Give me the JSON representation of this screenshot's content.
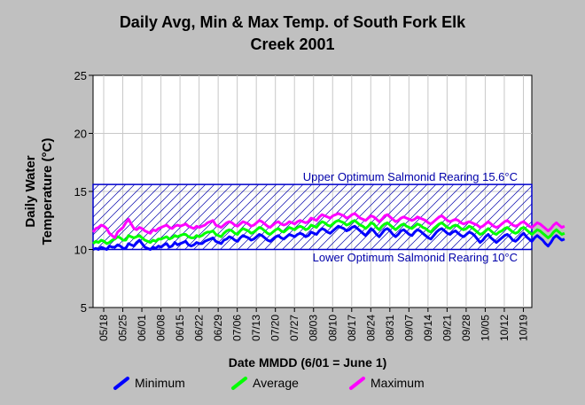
{
  "chart_data": {
    "type": "line",
    "title_lines": [
      "Daily Avg, Min & Max Temp. of South Fork Elk",
      "Creek 2001"
    ],
    "xlabel": "Date MMDD (6/01 = June 1)",
    "ylabel_lines": [
      "Daily Water",
      "Temperature (°C)"
    ],
    "ylim": [
      5,
      25
    ],
    "y_ticks": [
      "5",
      "10",
      "15",
      "20",
      "25"
    ],
    "x_ticks": [
      "05/18",
      "05/25",
      "06/01",
      "06/08",
      "06/15",
      "06/22",
      "06/29",
      "07/06",
      "07/13",
      "07/20",
      "07/27",
      "08/03",
      "08/10",
      "08/17",
      "08/24",
      "08/31",
      "09/07",
      "09/14",
      "09/21",
      "09/28",
      "10/05",
      "10/12",
      "10/19"
    ],
    "grid": true,
    "legend_position": "bottom",
    "band": {
      "upper": 15.6,
      "lower": 10,
      "upper_label": "Upper Optimum Salmonid Rearing 15.6°C",
      "lower_label": "Lower Optimum Salmonid Rearing 10°C"
    },
    "series": [
      {
        "name": "Minimum",
        "color": "#0000ff",
        "values": [
          10.0,
          10.1,
          10.0,
          10.2,
          10.1,
          10.0,
          10.3,
          10.2,
          10.2,
          10.4,
          10.3,
          10.1,
          10.1,
          10.5,
          10.4,
          10.3,
          10.6,
          10.8,
          10.5,
          10.2,
          10.1,
          10.0,
          10.2,
          10.1,
          10.3,
          10.2,
          10.4,
          10.5,
          10.2,
          10.3,
          10.6,
          10.4,
          10.5,
          10.6,
          10.7,
          10.4,
          10.3,
          10.4,
          10.6,
          10.5,
          10.5,
          10.7,
          10.8,
          10.9,
          11.0,
          10.7,
          10.6,
          10.5,
          10.8,
          10.9,
          11.1,
          11.0,
          10.8,
          10.7,
          11.0,
          11.2,
          11.1,
          11.0,
          10.8,
          10.9,
          11.1,
          11.3,
          11.2,
          11.0,
          10.8,
          10.7,
          10.9,
          11.1,
          11.2,
          11.0,
          10.9,
          11.1,
          11.3,
          11.2,
          11.1,
          11.3,
          11.4,
          11.3,
          11.1,
          11.2,
          11.5,
          11.4,
          11.3,
          11.6,
          11.8,
          11.7,
          11.5,
          11.4,
          11.6,
          11.8,
          12.0,
          11.9,
          11.8,
          11.6,
          11.7,
          11.9,
          12.0,
          11.8,
          11.6,
          11.4,
          11.2,
          11.5,
          11.8,
          11.6,
          11.3,
          11.1,
          11.4,
          11.7,
          11.8,
          11.6,
          11.3,
          11.1,
          11.3,
          11.6,
          11.7,
          11.5,
          11.3,
          11.2,
          11.5,
          11.7,
          11.6,
          11.4,
          11.2,
          11.0,
          10.9,
          11.2,
          11.5,
          11.7,
          11.8,
          11.6,
          11.4,
          11.3,
          11.5,
          11.6,
          11.4,
          11.2,
          11.1,
          11.3,
          11.5,
          11.4,
          11.2,
          10.9,
          10.6,
          10.8,
          11.1,
          11.3,
          11.0,
          10.8,
          10.6,
          10.8,
          11.0,
          11.2,
          11.3,
          11.1,
          10.8,
          10.7,
          10.9,
          11.2,
          11.4,
          11.1,
          10.9,
          10.7,
          11.0,
          11.2,
          11.0,
          10.8,
          10.5,
          10.3,
          10.6,
          11.0,
          11.2,
          11.0,
          10.8,
          10.9
        ]
      },
      {
        "name": "Average",
        "color": "#00ff00",
        "values": [
          10.5,
          10.7,
          10.6,
          10.8,
          10.7,
          10.5,
          10.6,
          10.8,
          10.9,
          11.1,
          11.0,
          10.8,
          10.8,
          11.2,
          11.1,
          11.0,
          11.1,
          11.2,
          11.0,
          10.8,
          10.7,
          10.6,
          10.8,
          10.7,
          10.9,
          10.9,
          11.0,
          11.1,
          10.9,
          11.0,
          11.2,
          11.1,
          11.2,
          11.3,
          11.3,
          11.1,
          11.0,
          11.0,
          11.2,
          11.1,
          11.2,
          11.4,
          11.5,
          11.5,
          11.6,
          11.3,
          11.2,
          11.1,
          11.4,
          11.6,
          11.7,
          11.6,
          11.4,
          11.3,
          11.6,
          11.8,
          11.7,
          11.6,
          11.4,
          11.5,
          11.7,
          11.9,
          11.8,
          11.6,
          11.4,
          11.3,
          11.5,
          11.7,
          11.8,
          11.6,
          11.5,
          11.7,
          11.9,
          11.8,
          11.7,
          11.9,
          12.0,
          11.9,
          11.7,
          11.8,
          12.1,
          12.0,
          11.9,
          12.2,
          12.4,
          12.3,
          12.1,
          12.0,
          12.2,
          12.4,
          12.5,
          12.4,
          12.3,
          12.1,
          12.2,
          12.4,
          12.5,
          12.3,
          12.1,
          12.0,
          11.8,
          12.0,
          12.3,
          12.2,
          11.9,
          11.7,
          12.0,
          12.2,
          12.3,
          12.1,
          11.9,
          11.7,
          11.9,
          12.1,
          12.2,
          12.0,
          11.9,
          11.8,
          12.0,
          12.2,
          12.1,
          11.9,
          11.8,
          11.6,
          11.5,
          11.8,
          12.0,
          12.2,
          12.3,
          12.1,
          11.9,
          11.8,
          12.0,
          12.1,
          12.0,
          11.8,
          11.7,
          11.8,
          12.0,
          11.9,
          11.7,
          11.5,
          11.3,
          11.4,
          11.6,
          11.8,
          11.6,
          11.4,
          11.3,
          11.5,
          11.6,
          11.8,
          11.9,
          11.7,
          11.5,
          11.4,
          11.5,
          11.8,
          11.9,
          11.7,
          11.5,
          11.3,
          11.5,
          11.7,
          11.6,
          11.4,
          11.2,
          11.0,
          11.2,
          11.5,
          11.7,
          11.5,
          11.3,
          11.4
        ]
      },
      {
        "name": "Maximum",
        "color": "#ff00ff",
        "values": [
          11.5,
          11.8,
          11.9,
          12.1,
          12.0,
          11.8,
          11.4,
          11.2,
          11.0,
          11.5,
          11.7,
          11.9,
          12.3,
          12.6,
          12.2,
          11.8,
          11.7,
          11.9,
          11.8,
          11.6,
          11.5,
          11.4,
          11.7,
          11.6,
          11.8,
          11.9,
          12.0,
          12.1,
          11.9,
          11.8,
          12.0,
          12.1,
          12.0,
          12.1,
          12.2,
          12.0,
          11.9,
          11.8,
          12.0,
          11.9,
          12.0,
          12.1,
          12.3,
          12.4,
          12.5,
          12.1,
          12.0,
          11.9,
          12.1,
          12.3,
          12.4,
          12.3,
          12.1,
          12.0,
          12.2,
          12.4,
          12.3,
          12.2,
          12.0,
          12.1,
          12.3,
          12.5,
          12.4,
          12.2,
          12.0,
          11.9,
          12.1,
          12.3,
          12.4,
          12.2,
          12.1,
          12.2,
          12.4,
          12.3,
          12.2,
          12.4,
          12.5,
          12.4,
          12.3,
          12.4,
          12.7,
          12.6,
          12.5,
          12.8,
          13.0,
          12.9,
          12.8,
          12.7,
          12.9,
          13.0,
          13.1,
          13.0,
          12.9,
          12.7,
          12.8,
          13.0,
          13.1,
          12.9,
          12.7,
          12.6,
          12.5,
          12.7,
          12.9,
          12.8,
          12.6,
          12.4,
          12.6,
          12.9,
          13.0,
          12.8,
          12.6,
          12.4,
          12.5,
          12.7,
          12.8,
          12.7,
          12.6,
          12.5,
          12.6,
          12.8,
          12.7,
          12.6,
          12.5,
          12.3,
          12.2,
          12.4,
          12.6,
          12.8,
          12.9,
          12.7,
          12.5,
          12.4,
          12.5,
          12.6,
          12.5,
          12.3,
          12.2,
          12.3,
          12.4,
          12.3,
          12.2,
          12.1,
          11.9,
          12.0,
          12.2,
          12.4,
          12.2,
          12.0,
          11.9,
          12.0,
          12.2,
          12.4,
          12.5,
          12.3,
          12.1,
          12.0,
          12.1,
          12.3,
          12.4,
          12.2,
          12.0,
          11.9,
          12.1,
          12.3,
          12.2,
          12.0,
          11.8,
          11.6,
          11.8,
          12.1,
          12.3,
          12.1,
          11.9,
          12.0
        ]
      }
    ]
  }
}
